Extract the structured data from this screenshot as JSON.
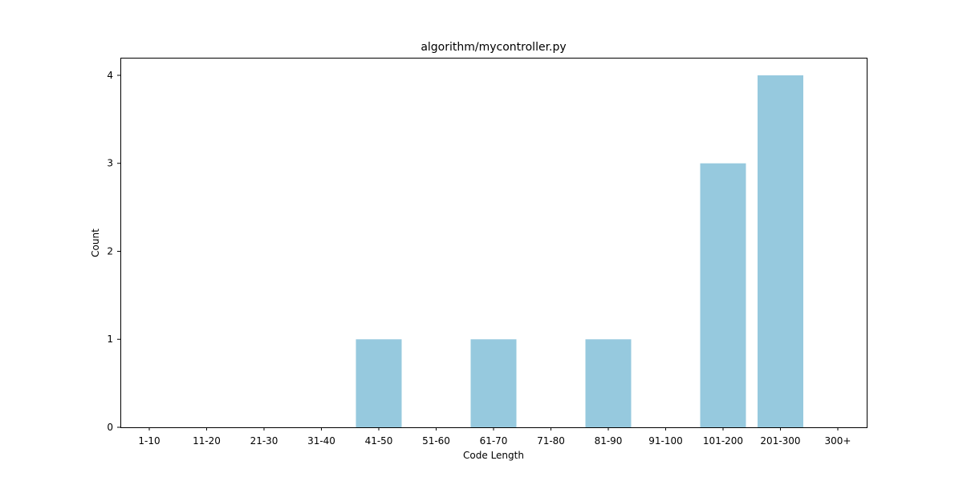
{
  "chart_data": {
    "type": "bar",
    "title": "algorithm/mycontroller.py",
    "xlabel": "Code Length",
    "ylabel": "Count",
    "categories": [
      "1-10",
      "11-20",
      "21-30",
      "31-40",
      "41-50",
      "51-60",
      "61-70",
      "71-80",
      "81-90",
      "91-100",
      "101-200",
      "201-300",
      "300+"
    ],
    "values": [
      0,
      0,
      0,
      0,
      1,
      0,
      1,
      0,
      1,
      0,
      3,
      4,
      0
    ],
    "ylim": [
      0,
      4.2
    ],
    "yticks": [
      0,
      1,
      2,
      3,
      4
    ],
    "grid": false,
    "bar_color": "#96c9de"
  }
}
